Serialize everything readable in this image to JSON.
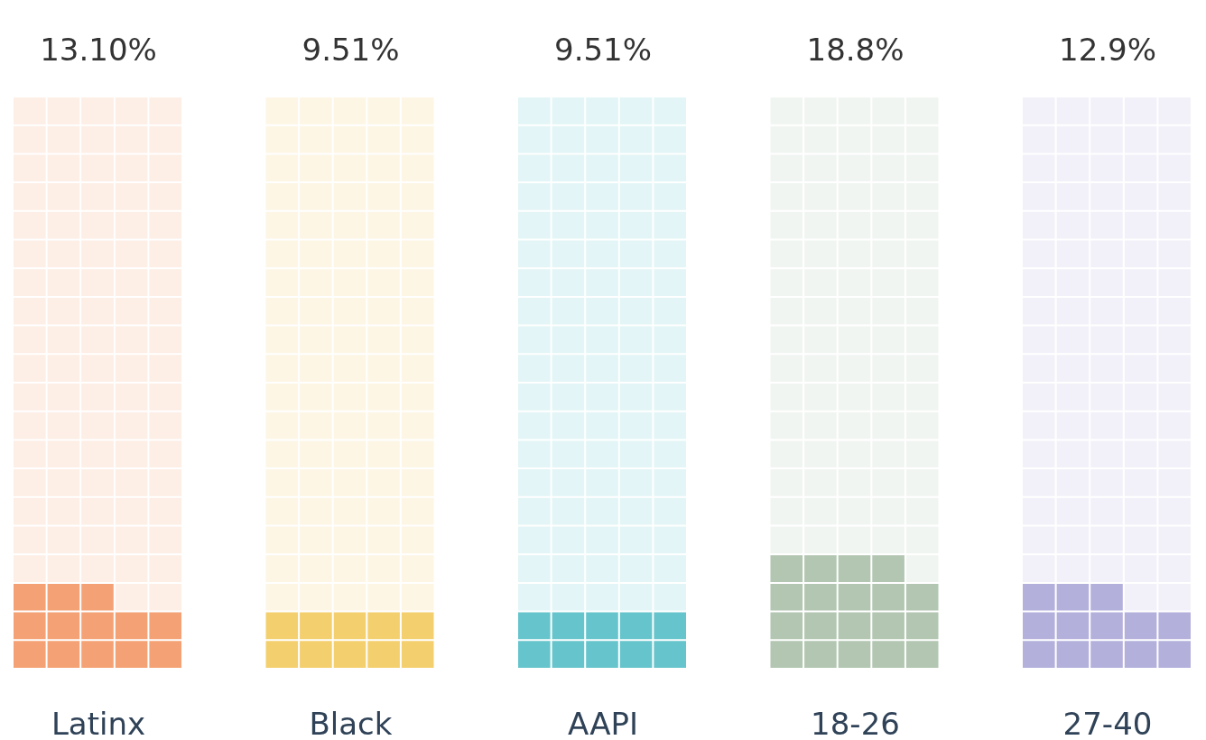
{
  "chart_data": {
    "type": "other",
    "categories": [
      "Latinx",
      "Black",
      "AAPI",
      "18-26",
      "27-40"
    ],
    "values": [
      13.1,
      9.51,
      9.51,
      18.8,
      12.9
    ],
    "value_labels": [
      "13.10%",
      "9.51%",
      "9.51%",
      "18.8%",
      "12.9%"
    ],
    "colors": [
      "#f4a275",
      "#f3cf6e",
      "#66c5cc",
      "#b2c6b1",
      "#b4b0dc"
    ]
  }
}
